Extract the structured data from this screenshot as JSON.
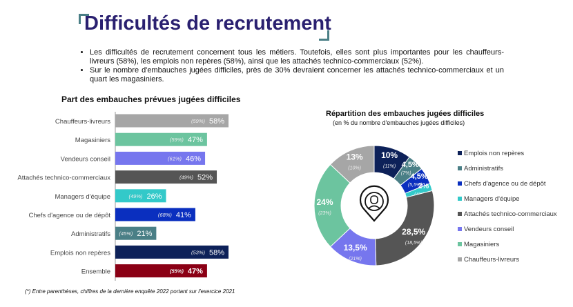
{
  "header": {
    "title": "Difficultés de recrutement"
  },
  "bullets": [
    "Les difficultés de recrutement concernent tous les métiers. Toutefois, elles sont plus importantes pour les chauffeurs-livreurs (58%), les emplois non repères (58%), ainsi que les attachés technico-commerciaux (52%).",
    "Sur le nombre d'embauches jugées difficiles, près de 30% devraient concerner les attachés technico-commerciaux et un quart les magasiniers."
  ],
  "footnote": "(*) Entre parenthèses, chiffres de la dernière enquête 2022 portant sur l'exercice 2021",
  "chart_data": [
    {
      "type": "bar",
      "orientation": "horizontal",
      "title": "Part des embauches prévues jugées difficiles",
      "categories": [
        "Chauffeurs-livreurs",
        "Magasiniers",
        "Vendeurs conseil",
        "Attachés technico-commerciaux",
        "Managers d'équipe",
        "Chefs d'agence ou de dépôt",
        "Administratifs",
        "Emplois non repères",
        "Ensemble"
      ],
      "values": [
        58,
        47,
        46,
        52,
        26,
        41,
        21,
        58,
        47
      ],
      "value_labels": [
        "58%",
        "47%",
        "46%",
        "52%",
        "26%",
        "41%",
        "21%",
        "58%",
        "47%"
      ],
      "previous_labels": [
        "(59%)",
        "(59%)",
        "(61%)",
        "(49%)",
        "(49%)",
        "(68%)",
        "(45%)",
        "(53%)",
        "(55%)"
      ],
      "colors": [
        "#a6a6a6",
        "#6cc49f",
        "#7676ee",
        "#555555",
        "#33c9c9",
        "#0a2fbf",
        "#4a7f86",
        "#0d2159",
        "#8b0015"
      ],
      "xlim": [
        0,
        58
      ]
    },
    {
      "type": "pie",
      "donut": true,
      "title": "Répartition des embauches jugées difficiles",
      "subtitle": "(en % du nombre d'embauches jugées difficiles)",
      "categories": [
        "Emplois non repères",
        "Administratifs",
        "Chefs d'agence ou de dépôt",
        "Managers d'équipe",
        "Attachés technico-commerciaux",
        "Vendeurs conseil",
        "Magasiniers",
        "Chauffeurs-livreurs"
      ],
      "values": [
        10,
        4.5,
        4.5,
        2,
        28.5,
        13.5,
        24,
        13
      ],
      "value_labels": [
        "10%",
        "4,5%",
        "4,5%",
        "2%",
        "28,5%",
        "13,5%",
        "24%",
        "13%"
      ],
      "previous_labels": [
        "(11%)",
        "(7%)",
        "(5,5%)",
        "(4%)",
        "(18,5%)",
        "(21%)",
        "(23%)",
        "(10%)"
      ],
      "colors": [
        "#0d2159",
        "#4a7f86",
        "#0a2fbf",
        "#33c9c9",
        "#555555",
        "#7676ee",
        "#6cc49f",
        "#a6a6a6"
      ],
      "legend": "right",
      "center_icon": "person-location-pin-icon"
    }
  ]
}
